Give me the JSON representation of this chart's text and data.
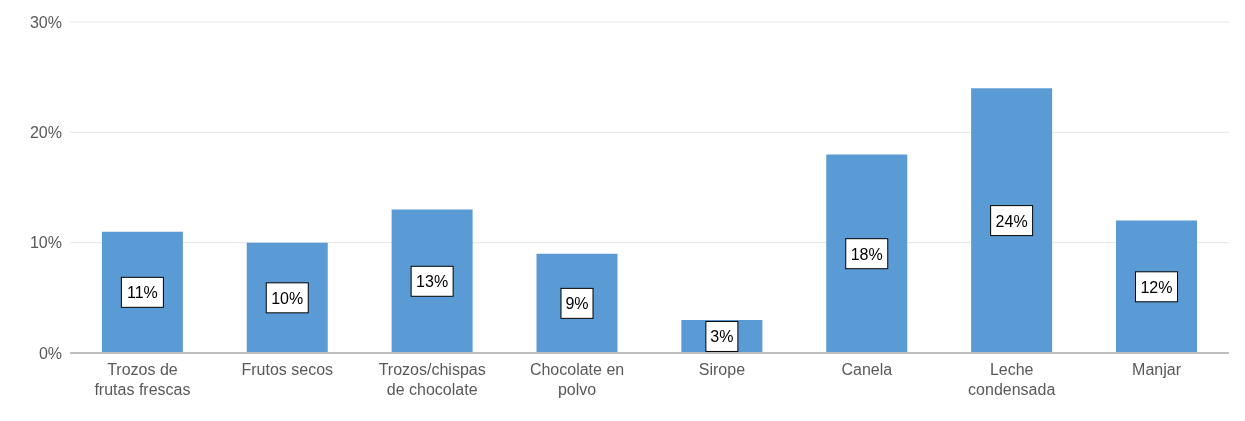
{
  "chart_data": {
    "type": "bar",
    "categories": [
      "Trozos de frutas frescas",
      "Frutos secos",
      "Trozos/chispas de chocolate",
      "Chocolate en polvo",
      "Sirope",
      "Canela",
      "Leche condensada",
      "Manjar"
    ],
    "values": [
      11,
      10,
      13,
      9,
      3,
      18,
      24,
      12
    ],
    "value_labels": [
      "11%",
      "10%",
      "13%",
      "9%",
      "3%",
      "18%",
      "24%",
      "12%"
    ],
    "color": "#5b9bd5",
    "ylim": [
      0,
      30
    ],
    "yticks": [
      {
        "value": 0,
        "label": "0%"
      },
      {
        "value": 10,
        "label": "10%"
      },
      {
        "value": 20,
        "label": "20%"
      },
      {
        "value": 30,
        "label": "30%"
      }
    ],
    "grid": "y"
  }
}
